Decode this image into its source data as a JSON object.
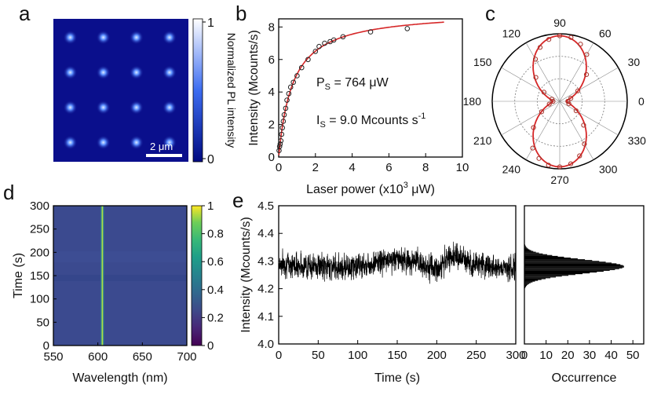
{
  "chart_data": [
    {
      "panel": "a",
      "type": "heatmap",
      "grid": {
        "rows": 4,
        "cols": 4
      },
      "scale_bar": "2 μm",
      "colorbar": {
        "label": "Normalized PL intensity",
        "ticks": [
          "1",
          "0"
        ],
        "range": [
          0,
          1
        ]
      },
      "colors": {
        "low": "#0a0f8c",
        "high": "#ffffff",
        "spot": "#4f8cff"
      }
    },
    {
      "panel": "b",
      "type": "scatter",
      "xlabel_pre": "Laser power (x10",
      "xlabel_sup": "3",
      "xlabel_post": " μW)",
      "ylabel": "Intensity (Mcounts/s)",
      "xlim": [
        0,
        10
      ],
      "ylim": [
        0,
        8.5
      ],
      "xticks": [
        "0",
        "2",
        "4",
        "6",
        "8",
        "10"
      ],
      "yticks": [
        "0",
        "2",
        "4",
        "6",
        "8"
      ],
      "annot_ps_main": "P",
      "annot_ps_sub": "S",
      "annot_ps_rest": " = 764 μW",
      "annot_is_main": "I",
      "annot_is_sub": "S",
      "annot_is_rest": " = 9.0 Mcounts s",
      "annot_is_sup": "-1",
      "x": [
        0.02,
        0.05,
        0.08,
        0.12,
        0.16,
        0.2,
        0.25,
        0.3,
        0.38,
        0.45,
        0.55,
        0.65,
        0.8,
        1.0,
        1.25,
        1.6,
        2.0,
        2.2,
        2.5,
        2.8,
        3.0,
        3.5,
        5.0,
        7.0
      ],
      "y": [
        0.4,
        0.65,
        0.8,
        1.0,
        1.4,
        1.8,
        2.2,
        2.6,
        3.0,
        3.5,
        3.9,
        4.3,
        4.6,
        5.0,
        5.5,
        6.0,
        6.5,
        6.8,
        7.0,
        7.1,
        7.2,
        7.4,
        7.7,
        7.9
      ],
      "fit": {
        "Ps_uW": 764,
        "Is": 9.0,
        "color": "#d62728"
      }
    },
    {
      "panel": "c",
      "type": "polar",
      "angle_ticks": [
        "0",
        "30",
        "60",
        "90",
        "120",
        "150",
        "180",
        "210",
        "240",
        "270",
        "300",
        "330"
      ],
      "angles_deg": [
        0,
        15,
        30,
        45,
        60,
        70,
        80,
        90,
        100,
        110,
        120,
        135,
        150,
        165,
        180,
        195,
        210,
        225,
        240,
        250,
        260,
        270,
        280,
        290,
        300,
        315,
        330,
        345
      ],
      "r": [
        0.12,
        0.17,
        0.31,
        0.56,
        0.8,
        0.9,
        0.96,
        0.97,
        0.93,
        0.85,
        0.72,
        0.5,
        0.27,
        0.12,
        0.1,
        0.16,
        0.31,
        0.55,
        0.8,
        0.9,
        0.96,
        0.97,
        0.94,
        0.86,
        0.73,
        0.5,
        0.28,
        0.14
      ],
      "fit_color": "#d62728",
      "point_color": "#a4332b"
    },
    {
      "panel": "d",
      "type": "heatmap",
      "xlabel": "Wavelength (nm)",
      "ylabel": "Time (s)",
      "xlim": [
        550,
        700
      ],
      "ylim": [
        0,
        300
      ],
      "xticks": [
        "550",
        "600",
        "650",
        "700"
      ],
      "yticks": [
        "0",
        "50",
        "100",
        "150",
        "200",
        "250",
        "300"
      ],
      "peak_nm": 605,
      "colorbar": {
        "range": [
          0,
          1
        ],
        "ticks": [
          "0",
          "0.2",
          "0.4",
          "0.6",
          "0.8",
          "1"
        ]
      }
    },
    {
      "panel": "e",
      "type": "line",
      "xlabel": "Time (s)",
      "ylabel": "Intensity (Mcounts/s)",
      "xlim": [
        0,
        300
      ],
      "ylim": [
        4.0,
        4.5
      ],
      "xticks": [
        "0",
        "50",
        "100",
        "150",
        "200",
        "250",
        "300"
      ],
      "yticks": [
        "4.0",
        "4.1",
        "4.2",
        "4.3",
        "4.4",
        "4.5"
      ],
      "mean": 4.28,
      "trend": [
        [
          0,
          4.29
        ],
        [
          50,
          4.28
        ],
        [
          100,
          4.28
        ],
        [
          150,
          4.31
        ],
        [
          180,
          4.29
        ],
        [
          200,
          4.27
        ],
        [
          220,
          4.32
        ],
        [
          250,
          4.29
        ],
        [
          300,
          4.27
        ]
      ]
    },
    {
      "panel": "e_hist",
      "type": "bar",
      "xlabel": "Occurrence",
      "xlim": [
        0,
        55
      ],
      "xticks": [
        "0",
        "10",
        "20",
        "30",
        "40",
        "50"
      ],
      "peak_intensity": 4.28,
      "peak_count": 46
    }
  ],
  "panel_labels": [
    "a",
    "b",
    "c",
    "d",
    "e"
  ]
}
